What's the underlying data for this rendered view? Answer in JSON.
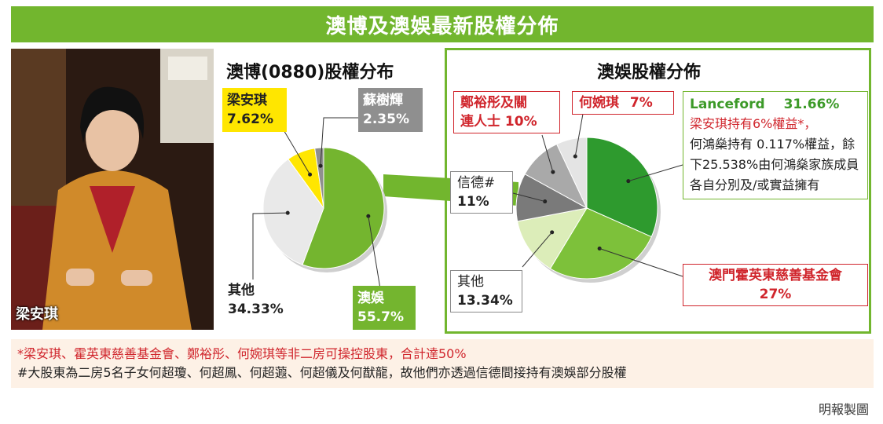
{
  "banner_title": "澳博及澳娛最新股權分佈",
  "photo_caption": "梁安琪",
  "credit": "明報製圖",
  "colors": {
    "accent_green": "#72b62e",
    "red": "#d0252c",
    "yellow": "#ffe600",
    "grey": "#8f8f8f"
  },
  "left_chart_title": "澳博(0880)股權分布",
  "right_chart_title": "澳娛股權分佈",
  "labels": {
    "sjm_liang_name": "梁安琪",
    "sjm_liang_pct": "7.62%",
    "sjm_so_name": "蘇樹輝",
    "sjm_so_pct": "2.35%",
    "sjm_other_name": "其他",
    "sjm_other_pct": "34.33%",
    "sjm_stdm_name": "澳娛",
    "sjm_stdm_pct": "55.7%",
    "stdm_cheng_line1": "鄭裕彤及關",
    "stdm_cheng_line2": "連人士",
    "stdm_cheng_pct": "10%",
    "stdm_ho_name": "何婉琪",
    "stdm_ho_pct": "7%",
    "stdm_lanceford_name": "Lanceford",
    "stdm_lanceford_pct": "31.66%",
    "stdm_lanceford_note_red": "梁安琪持有6%權益*，",
    "stdm_lanceford_note": "何鴻燊持有 0.117%權益，餘下25.538%由何鴻燊家族成員各自分別及/或實益擁有",
    "stdm_shunde_name": "信德#",
    "stdm_shunde_pct": "11%",
    "stdm_other_name": "其他",
    "stdm_other_pct": "13.34%",
    "stdm_hyt_name": "澳門霍英東慈善基金會",
    "stdm_hyt_pct": "27%"
  },
  "notes": {
    "note1": "*梁安琪、霍英東慈善基金會、鄭裕彤、何婉琪等非二房可操控股東，合計達50%",
    "note2": "#大股東為二房5名子女何超瓊、何超鳳、何超蕸、何超儀及何猷龍，故他們亦透過信德間接持有澳娛部分股權"
  },
  "chart_data": [
    {
      "type": "pie",
      "title": "澳博(0880)股權分布",
      "categories": [
        "澳娛",
        "其他",
        "梁安琪",
        "蘇樹輝"
      ],
      "values": [
        55.7,
        34.33,
        7.62,
        2.35
      ],
      "colors": [
        "#74b52f",
        "#e9e9e9",
        "#ffe600",
        "#8f8f8f"
      ]
    },
    {
      "type": "pie",
      "title": "澳娛股權分佈",
      "categories": [
        "Lanceford",
        "澳門霍英東慈善基金會",
        "其他",
        "信德#",
        "鄭裕彤及關連人士",
        "何婉琪"
      ],
      "values": [
        31.66,
        27,
        13.34,
        11,
        10,
        7
      ],
      "colors": [
        "#2e9a2e",
        "#7dc13a",
        "#dcedb9",
        "#7a7a7a",
        "#a9a9a9",
        "#e4e4e4"
      ]
    }
  ]
}
